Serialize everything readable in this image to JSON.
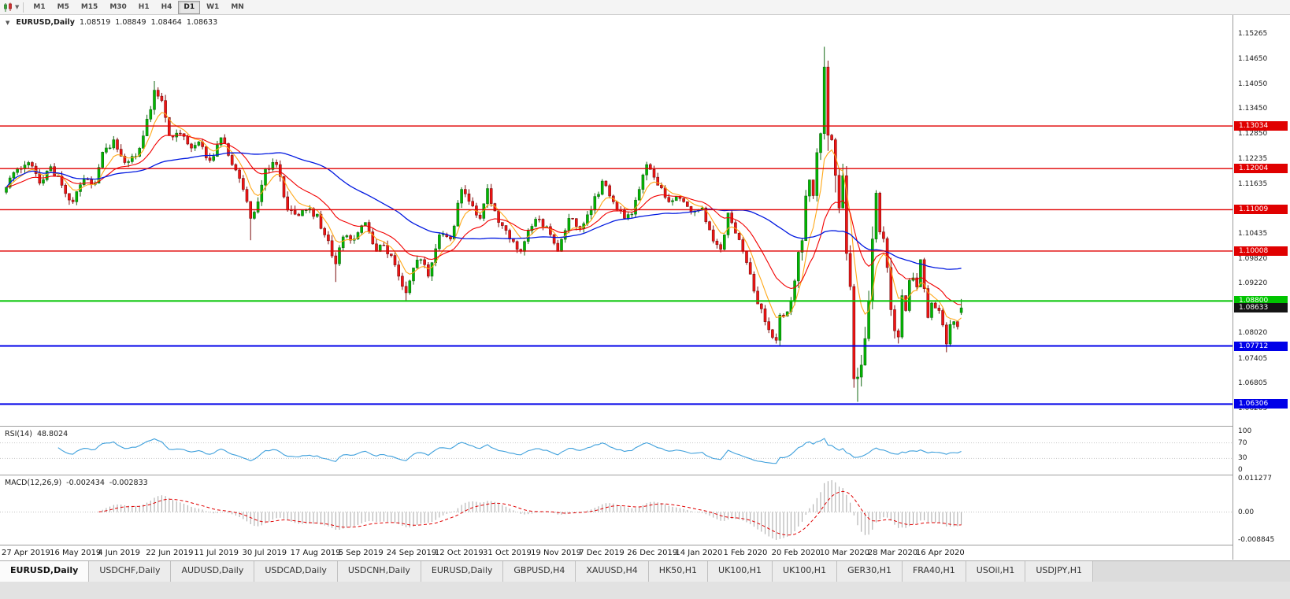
{
  "toolbar": {
    "timeframes": [
      "M1",
      "M5",
      "M15",
      "M30",
      "H1",
      "H4",
      "D1",
      "W1",
      "MN"
    ],
    "active_timeframe": "D1"
  },
  "chart": {
    "symbol": "EURUSD,Daily",
    "open": "1.08519",
    "high": "1.08849",
    "low": "1.08464",
    "close": "1.08633"
  },
  "rsi_panel": {
    "name": "RSI(14)",
    "value": "48.8024"
  },
  "macd_panel": {
    "name": "MACD(12,26,9)",
    "value": "-0.002434",
    "signal_value": "-0.002833"
  },
  "bottom_tabs": {
    "active_index": 0,
    "tabs": [
      "EURUSD,Daily",
      "USDCHF,Daily",
      "AUDUSD,Daily",
      "USDCAD,Daily",
      "USDCNH,Daily",
      "EURUSD,Daily",
      "GBPUSD,H4",
      "XAUUSD,H4",
      "HK50,H1",
      "UK100,H1",
      "UK100,H1",
      "GER30,H1",
      "FRA40,H1",
      "USOil,H1",
      "USDJPY,H1"
    ],
    "active_tab": "EURUSD,Daily"
  },
  "chart_data": {
    "type": "candlestick",
    "symbol": "EURUSD",
    "timeframe": "Daily",
    "candle_count": 259,
    "y_range": [
      1.0578,
      1.1572
    ],
    "x_labels": [
      "27 Apr 2019",
      "16 May 2019",
      "4 Jun 2019",
      "22 Jun 2019",
      "11 Jul 2019",
      "30 Jul 2019",
      "17 Aug 2019",
      "5 Sep 2019",
      "24 Sep 2019",
      "12 Oct 2019",
      "31 Oct 2019",
      "19 Nov 2019",
      "7 Dec 2019",
      "26 Dec 2019",
      "14 Jan 2020",
      "1 Feb 2020",
      "20 Feb 2020",
      "10 Mar 2020",
      "28 Mar 2020",
      "16 Apr 2020"
    ],
    "y_ticks": [
      "1.15265",
      "1.14650",
      "1.14050",
      "1.13450",
      "1.12850",
      "1.12235",
      "1.11635",
      "1.11035",
      "1.10435",
      "1.09820",
      "1.09220",
      "1.08620",
      "1.08020",
      "1.07405",
      "1.06805",
      "1.06205"
    ],
    "hlines": [
      {
        "value": 1.13034,
        "label": "1.13034",
        "color": "#E00000",
        "width": 1.4
      },
      {
        "value": 1.12004,
        "label": "1.12004",
        "color": "#E00000",
        "width": 1.4
      },
      {
        "value": 1.11009,
        "label": "1.11009",
        "color": "#E00000",
        "width": 1.4
      },
      {
        "value": 1.10008,
        "label": "1.10008",
        "color": "#E00000",
        "width": 1.4
      },
      {
        "value": 1.088,
        "label": "1.08800",
        "color": "#00C400",
        "width": 2
      },
      {
        "value": 1.07712,
        "label": "1.07712",
        "color": "#0000E8",
        "width": 2
      },
      {
        "value": 1.06306,
        "label": "1.06306",
        "color": "#0000E8",
        "width": 2
      }
    ],
    "current_price": {
      "value": 1.08633,
      "label": "1.08633",
      "bg": "#141414"
    },
    "colors": {
      "candle_up": "#00B800",
      "candle_up_border": "#136813",
      "candle_down": "#F21414",
      "candle_down_border": "#7c0e0e",
      "rsi_line": "#3FA0DC",
      "macd_hist": "#A6A6A6",
      "macd_signal": "#E00000"
    },
    "moving_averages": [
      {
        "period": 7,
        "type": "ema",
        "color": "#FFA818",
        "width": 1.1
      },
      {
        "period": 20,
        "type": "ema",
        "color": "#F20000",
        "width": 1.1
      },
      {
        "period": 50,
        "type": "sma",
        "color": "#0018E0",
        "width": 1.3
      }
    ],
    "rsi": {
      "period": 14,
      "levels": [
        100,
        70,
        30,
        0
      ],
      "current": "48.8024"
    },
    "macd": {
      "fast": 12,
      "slow": 26,
      "signal": 9,
      "axis_labels": [
        "0.011277",
        "0.00",
        "-0.008845"
      ],
      "current": "-0.002434",
      "current_signal": "-0.002833"
    },
    "anchors": [
      [
        0,
        1.1155,
        0.002
      ],
      [
        3,
        1.12,
        0.002
      ],
      [
        6,
        1.1215,
        0.0018
      ],
      [
        9,
        1.1165,
        0.0022
      ],
      [
        12,
        1.1205,
        0.0018
      ],
      [
        15,
        1.116,
        0.002
      ],
      [
        18,
        1.112,
        0.0022
      ],
      [
        21,
        1.1175,
        0.002
      ],
      [
        24,
        1.1165,
        0.0018
      ],
      [
        26,
        1.124,
        0.0022
      ],
      [
        29,
        1.127,
        0.0022
      ],
      [
        32,
        1.1215,
        0.0022
      ],
      [
        35,
        1.123,
        0.002
      ],
      [
        38,
        1.132,
        0.0026
      ],
      [
        40,
        1.139,
        0.003
      ],
      [
        42,
        1.1365,
        0.0026
      ],
      [
        44,
        1.128,
        0.0024
      ],
      [
        47,
        1.1285,
        0.0018
      ],
      [
        50,
        1.125,
        0.0018
      ],
      [
        52,
        1.1265,
        0.0018
      ],
      [
        55,
        1.122,
        0.002
      ],
      [
        58,
        1.1275,
        0.002
      ],
      [
        61,
        1.121,
        0.002
      ],
      [
        64,
        1.115,
        0.0022
      ],
      [
        66,
        1.108,
        0.003
      ],
      [
        68,
        1.112,
        0.0026
      ],
      [
        70,
        1.12,
        0.0024
      ],
      [
        73,
        1.121,
        0.0022
      ],
      [
        76,
        1.11,
        0.0024
      ],
      [
        78,
        1.109,
        0.002
      ],
      [
        81,
        1.11,
        0.0018
      ],
      [
        84,
        1.109,
        0.0018
      ],
      [
        86,
        1.104,
        0.002
      ],
      [
        89,
        1.097,
        0.0024
      ],
      [
        91,
        1.1035,
        0.0022
      ],
      [
        94,
        1.103,
        0.0018
      ],
      [
        97,
        1.107,
        0.0018
      ],
      [
        100,
        1.1,
        0.002
      ],
      [
        102,
        1.1015,
        0.0018
      ],
      [
        104,
        1.099,
        0.002
      ],
      [
        106,
        1.094,
        0.0022
      ],
      [
        108,
        1.09,
        0.0024
      ],
      [
        110,
        1.096,
        0.0022
      ],
      [
        112,
        1.098,
        0.0018
      ],
      [
        114,
        1.094,
        0.002
      ],
      [
        117,
        1.104,
        0.0022
      ],
      [
        120,
        1.103,
        0.0018
      ],
      [
        123,
        1.115,
        0.0022
      ],
      [
        126,
        1.111,
        0.0018
      ],
      [
        128,
        1.108,
        0.0018
      ],
      [
        130,
        1.1152,
        0.0018
      ],
      [
        133,
        1.107,
        0.002
      ],
      [
        136,
        1.103,
        0.0018
      ],
      [
        139,
        1.1,
        0.0018
      ],
      [
        141,
        1.105,
        0.0018
      ],
      [
        143,
        1.1078,
        0.0016
      ],
      [
        146,
        1.106,
        0.0016
      ],
      [
        149,
        1.1,
        0.0018
      ],
      [
        152,
        1.108,
        0.0018
      ],
      [
        155,
        1.1055,
        0.0016
      ],
      [
        158,
        1.11,
        0.0018
      ],
      [
        161,
        1.117,
        0.0024
      ],
      [
        164,
        1.112,
        0.0018
      ],
      [
        167,
        1.108,
        0.0016
      ],
      [
        169,
        1.109,
        0.0016
      ],
      [
        171,
        1.115,
        0.0018
      ],
      [
        173,
        1.121,
        0.0022
      ],
      [
        176,
        1.116,
        0.0018
      ],
      [
        179,
        1.112,
        0.0016
      ],
      [
        182,
        1.1128,
        0.0016
      ],
      [
        185,
        1.1095,
        0.0016
      ],
      [
        188,
        1.1105,
        0.0016
      ],
      [
        191,
        1.1025,
        0.0018
      ],
      [
        193,
        1.1005,
        0.0016
      ],
      [
        195,
        1.1093,
        0.0022
      ],
      [
        197,
        1.1044,
        0.0018
      ],
      [
        199,
        1.1,
        0.0018
      ],
      [
        201,
        1.0945,
        0.002
      ],
      [
        203,
        1.0873,
        0.0022
      ],
      [
        205,
        1.083,
        0.0018
      ],
      [
        207,
        1.0792,
        0.0018
      ],
      [
        208,
        1.0785,
        0.002
      ],
      [
        209,
        1.0846,
        0.0022
      ],
      [
        211,
        1.0854,
        0.0018
      ],
      [
        212,
        1.088,
        0.002
      ],
      [
        214,
        1.0998,
        0.004
      ],
      [
        215,
        1.1026,
        0.004
      ],
      [
        216,
        1.1134,
        0.005
      ],
      [
        217,
        1.1173,
        0.005
      ],
      [
        218,
        1.1135,
        0.005
      ],
      [
        219,
        1.1239,
        0.006
      ],
      [
        220,
        1.1285,
        0.007
      ],
      [
        221,
        1.1446,
        0.006
      ],
      [
        222,
        1.1281,
        0.008
      ],
      [
        223,
        1.127,
        0.006
      ],
      [
        224,
        1.1184,
        0.008
      ],
      [
        225,
        1.1105,
        0.007
      ],
      [
        226,
        1.1183,
        0.006
      ],
      [
        227,
        1.0995,
        0.007
      ],
      [
        228,
        1.0915,
        0.008
      ],
      [
        229,
        1.0692,
        0.007
      ],
      [
        230,
        1.0696,
        0.006
      ],
      [
        231,
        1.0725,
        0.005
      ],
      [
        232,
        1.0789,
        0.005
      ],
      [
        233,
        1.088,
        0.005
      ],
      [
        234,
        1.103,
        0.006
      ],
      [
        235,
        1.1141,
        0.004
      ],
      [
        236,
        1.1047,
        0.004
      ],
      [
        237,
        1.1031,
        0.003
      ],
      [
        238,
        1.0961,
        0.0035
      ],
      [
        239,
        1.0859,
        0.004
      ],
      [
        240,
        1.0808,
        0.0035
      ],
      [
        241,
        1.0793,
        0.0028
      ],
      [
        242,
        1.0893,
        0.003
      ],
      [
        243,
        1.0857,
        0.0024
      ],
      [
        244,
        1.093,
        0.0026
      ],
      [
        245,
        1.0936,
        0.0022
      ],
      [
        246,
        1.0914,
        0.002
      ],
      [
        247,
        1.098,
        0.0024
      ],
      [
        248,
        1.091,
        0.0026
      ],
      [
        249,
        1.084,
        0.0024
      ],
      [
        250,
        1.0875,
        0.002
      ],
      [
        251,
        1.0863,
        0.0018
      ],
      [
        252,
        1.0857,
        0.0016
      ],
      [
        253,
        1.0822,
        0.0018
      ],
      [
        254,
        1.0776,
        0.002
      ],
      [
        255,
        1.0823,
        0.002
      ],
      [
        256,
        1.083,
        0.0016
      ],
      [
        257,
        1.0818,
        0.0016
      ],
      [
        258,
        1.0863,
        0.0018
      ]
    ],
    "wick_overrides": {
      "40": {
        "h": 1.1412
      },
      "66": {
        "l": 1.1027
      },
      "89": {
        "l": 1.0926
      },
      "108": {
        "l": 1.0879
      },
      "208": {
        "l": 1.0777
      },
      "221": {
        "h": 1.1495
      },
      "229": {
        "l": 1.067
      },
      "230": {
        "l": 1.0636
      },
      "235": {
        "h": 1.1148
      },
      "254": {
        "l": 1.0756
      },
      "258": {
        "o": 1.08519,
        "h": 1.08849,
        "l": 1.08464,
        "c": 1.08633
      }
    }
  }
}
